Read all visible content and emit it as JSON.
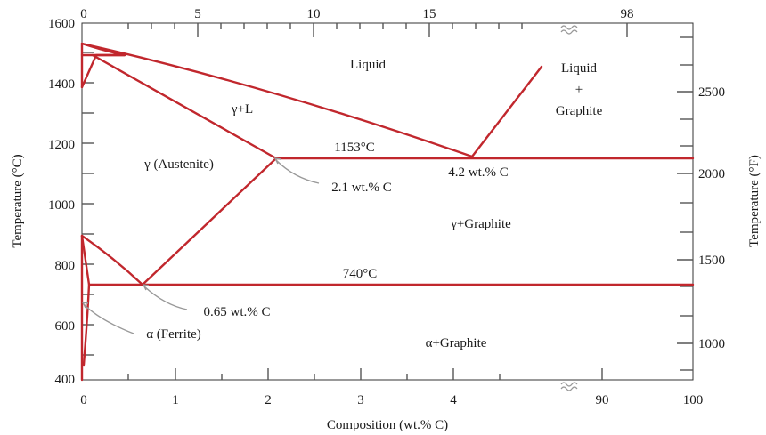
{
  "diagram": {
    "left_axis": {
      "title": "Temperature (°C)",
      "ticks": [
        "1600",
        "1400",
        "1200",
        "1000",
        "800",
        "600",
        "400"
      ]
    },
    "right_axis": {
      "title": "Temperature (°F)",
      "ticks": [
        "2500",
        "2000",
        "1500",
        "1000"
      ]
    },
    "bottom_axis": {
      "title": "Composition (wt.% C)",
      "ticks": [
        "0",
        "1",
        "2",
        "3",
        "4",
        "90",
        "100"
      ]
    },
    "top_axis": {
      "ticks": [
        "0",
        "5",
        "10",
        "15",
        "98"
      ]
    },
    "regions": {
      "liquid": "Liquid",
      "liquid_graphite_1": "Liquid",
      "liquid_graphite_2": "+",
      "liquid_graphite_3": "Graphite",
      "gamma_l": "γ+L",
      "austenite": "γ (Austenite)",
      "gamma_graphite": "γ+Graphite",
      "alpha_graphite": "α+Graphite"
    },
    "annotations": {
      "eutectic_temp": "1153°C",
      "eutectic_comp": "4.2 wt.% C",
      "max_solubility": "2.1 wt.% C",
      "eutectoid_temp": "740°C",
      "eutectoid_comp": "0.65 wt.% C",
      "ferrite": "α (Ferrite)"
    }
  }
}
